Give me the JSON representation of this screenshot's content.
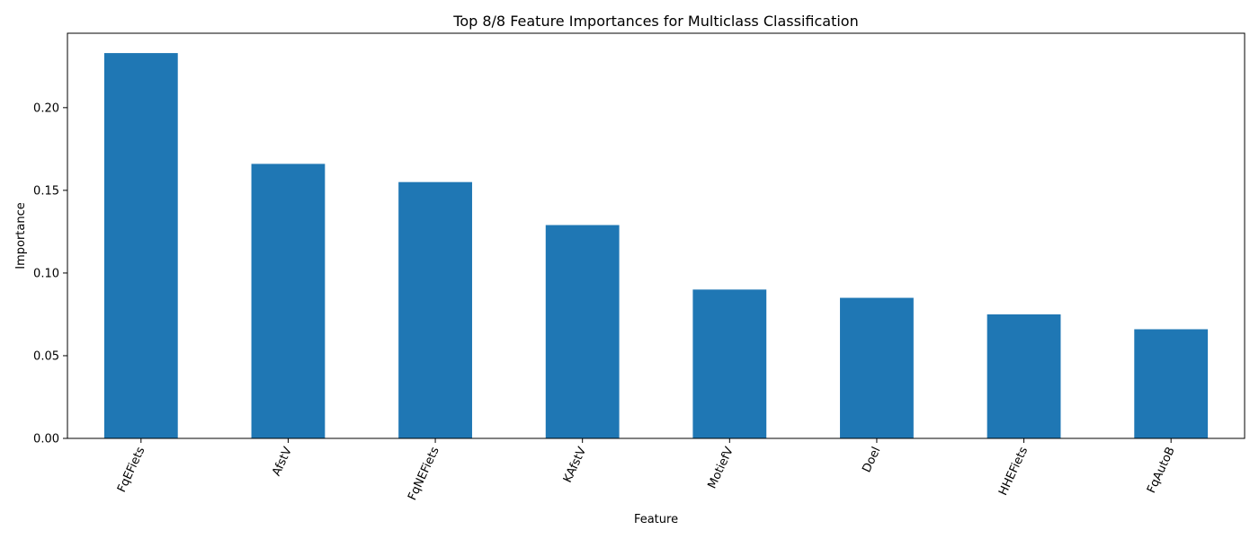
{
  "chart_data": {
    "type": "bar",
    "title": "Top 8/8 Feature Importances for Multiclass Classification",
    "xlabel": "Feature",
    "ylabel": "Importance",
    "categories": [
      "FqEFiets",
      "AfstV",
      "FqNEFiets",
      "KAfstV",
      "MotiefV",
      "Doel",
      "HHEFiets",
      "FqAutoB"
    ],
    "values": [
      0.233,
      0.166,
      0.155,
      0.129,
      0.09,
      0.085,
      0.075,
      0.066
    ],
    "yticks": [
      0.0,
      0.05,
      0.1,
      0.15,
      0.2
    ],
    "ytick_labels": [
      "0.00",
      "0.05",
      "0.10",
      "0.15",
      "0.20"
    ],
    "ylim": [
      0,
      0.245
    ],
    "bar_color": "#1f77b4",
    "grid": false,
    "legend": "none"
  }
}
